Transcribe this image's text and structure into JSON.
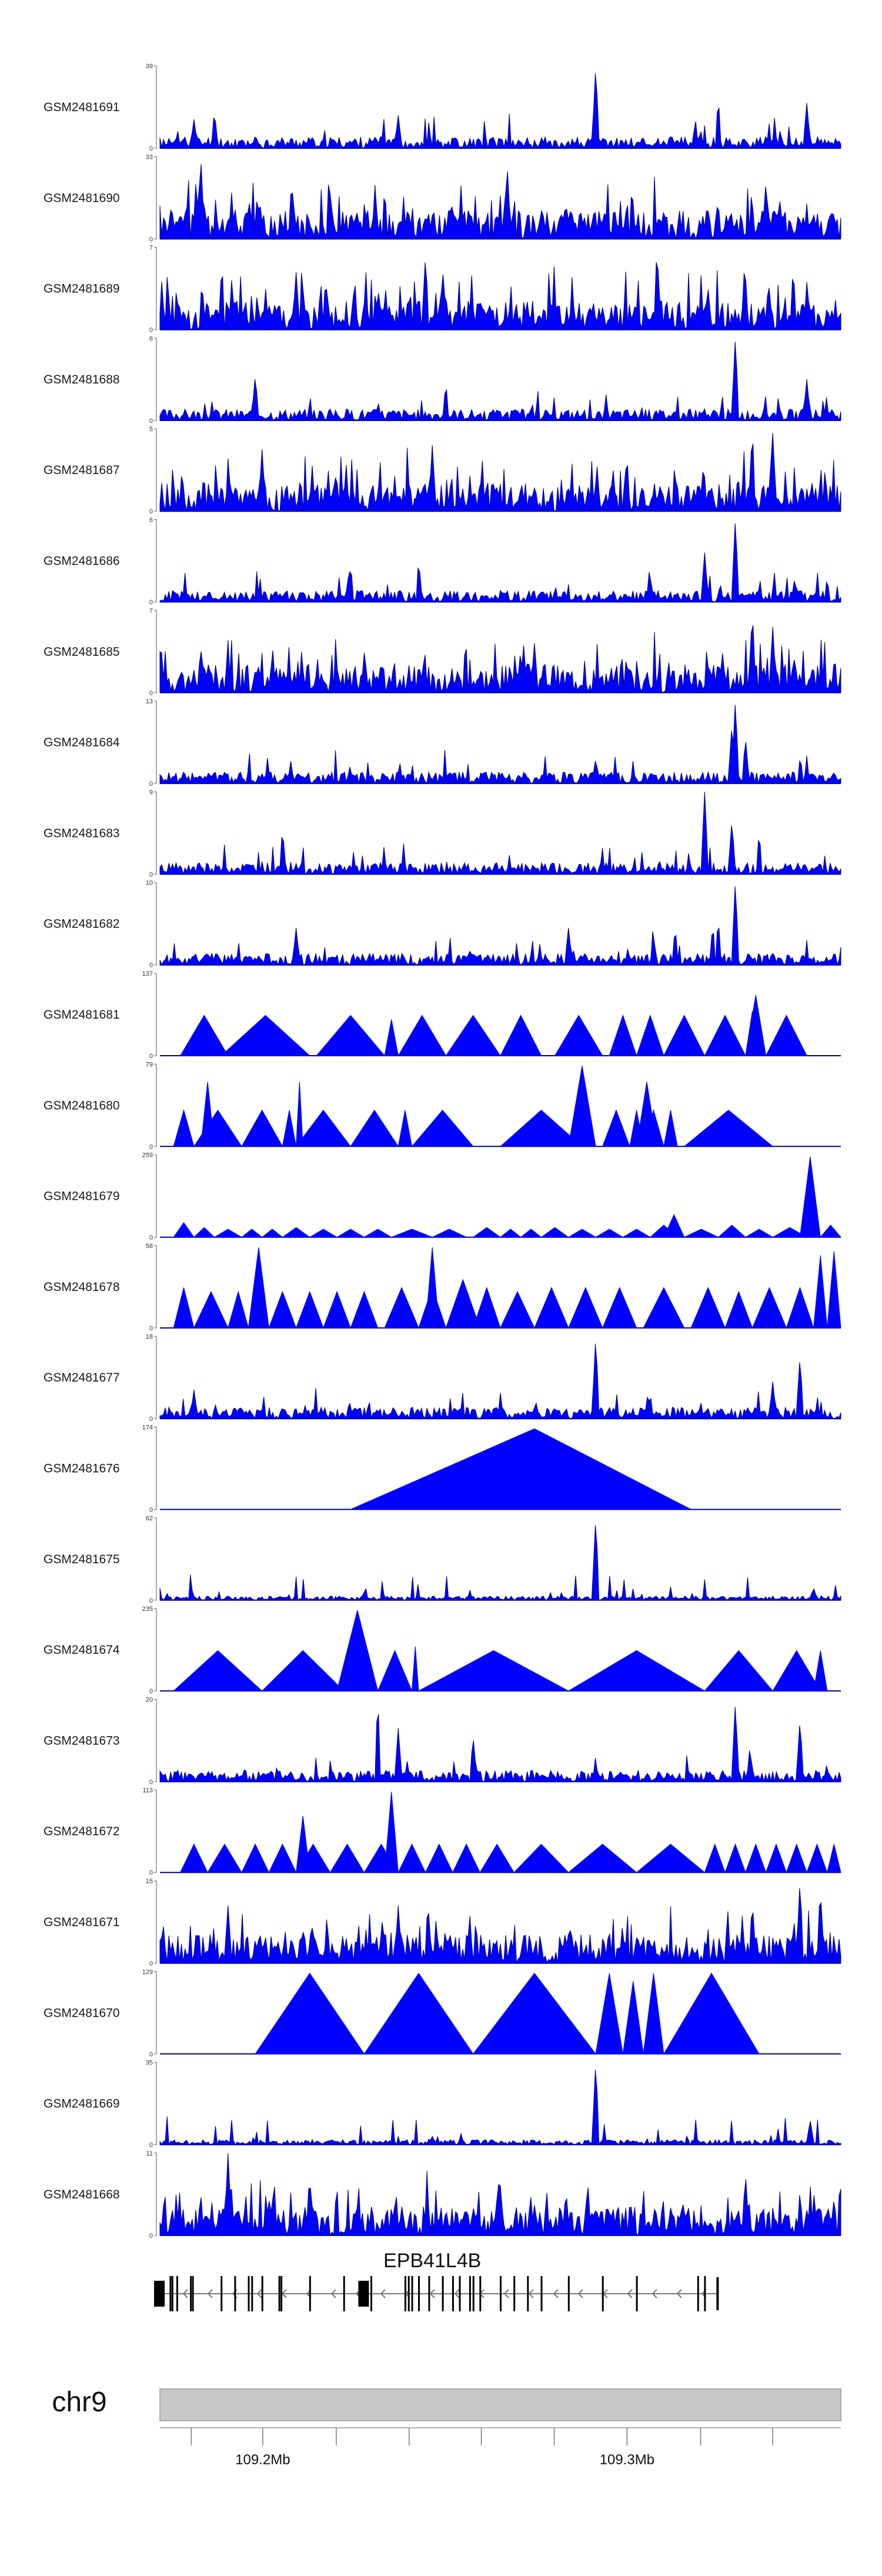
{
  "chart_data": {
    "type": "area",
    "description_title": "",
    "x_unit": "Mb",
    "xlim": [
      109.17,
      109.36
    ],
    "chromosome": "chr9",
    "tracks": [
      {
        "name": "GSM2481691",
        "ymax": 39,
        "style": "spiky",
        "seed": 11,
        "peaks": [
          [
            0.64,
            1.0
          ],
          [
            0.95,
            0.55
          ],
          [
            0.82,
            0.6
          ],
          [
            0.35,
            0.4
          ],
          [
            0.05,
            0.35
          ],
          [
            0.08,
            0.45
          ]
        ]
      },
      {
        "name": "GSM2481690",
        "ymax": 33,
        "style": "dense",
        "seed": 12,
        "peaks": [
          [
            0.51,
            0.9
          ],
          [
            0.89,
            0.7
          ],
          [
            0.06,
            1.0
          ],
          [
            0.25,
            0.55
          ],
          [
            0.33,
            0.6
          ]
        ]
      },
      {
        "name": "GSM2481689",
        "ymax": 7,
        "style": "dense",
        "seed": 13,
        "peaks": [
          [
            0.39,
            0.9
          ],
          [
            0.73,
            1.0
          ],
          [
            0.2,
            0.7
          ],
          [
            0.93,
            0.75
          ]
        ]
      },
      {
        "name": "GSM2481688",
        "ymax": 6,
        "style": "spiky",
        "seed": 14,
        "peaks": [
          [
            0.845,
            1.0
          ],
          [
            0.95,
            0.5
          ],
          [
            0.14,
            0.55
          ],
          [
            0.42,
            0.45
          ]
        ]
      },
      {
        "name": "GSM2481687",
        "ymax": 5,
        "style": "dense",
        "seed": 15,
        "peaks": [
          [
            0.87,
            1.0
          ],
          [
            0.9,
            0.95
          ],
          [
            0.4,
            0.8
          ],
          [
            0.15,
            0.75
          ]
        ]
      },
      {
        "name": "GSM2481686",
        "ymax": 6,
        "style": "spiky",
        "seed": 16,
        "peaks": [
          [
            0.845,
            1.0
          ],
          [
            0.8,
            0.6
          ],
          [
            0.38,
            0.5
          ],
          [
            0.28,
            0.45
          ]
        ]
      },
      {
        "name": "GSM2481685",
        "ymax": 7,
        "style": "dense",
        "seed": 17,
        "peaks": [
          [
            0.87,
            1.0
          ],
          [
            0.9,
            0.8
          ],
          [
            0.55,
            0.6
          ],
          [
            0.06,
            0.55
          ]
        ]
      },
      {
        "name": "GSM2481684",
        "ymax": 13,
        "style": "spiky",
        "seed": 18,
        "peaks": [
          [
            0.845,
            1.0
          ],
          [
            0.84,
            0.7
          ],
          [
            0.64,
            0.3
          ],
          [
            0.86,
            0.55
          ]
        ]
      },
      {
        "name": "GSM2481683",
        "ymax": 9,
        "style": "spiky",
        "seed": 19,
        "peaks": [
          [
            0.8,
            1.0
          ],
          [
            0.84,
            0.65
          ],
          [
            0.18,
            0.55
          ],
          [
            0.88,
            0.5
          ]
        ]
      },
      {
        "name": "GSM2481682",
        "ymax": 10,
        "style": "spiky",
        "seed": 20,
        "peaks": [
          [
            0.845,
            1.0
          ],
          [
            0.82,
            0.55
          ],
          [
            0.6,
            0.45
          ],
          [
            0.2,
            0.45
          ]
        ]
      },
      {
        "name": "GSM2481681",
        "ymax": 137,
        "style": "tri",
        "tri": [
          [
            0.03,
            0.1,
            0.5
          ],
          [
            0.09,
            0.22,
            0.5
          ],
          [
            0.23,
            0.33,
            0.5
          ],
          [
            0.33,
            0.35,
            0.45
          ],
          [
            0.35,
            0.42,
            0.5
          ],
          [
            0.42,
            0.5,
            0.5
          ],
          [
            0.5,
            0.56,
            0.5
          ],
          [
            0.58,
            0.65,
            0.5
          ],
          [
            0.66,
            0.7,
            0.5
          ],
          [
            0.7,
            0.74,
            0.5
          ],
          [
            0.74,
            0.8,
            0.5
          ],
          [
            0.8,
            0.86,
            0.5
          ],
          [
            0.86,
            0.89,
            0.75
          ],
          [
            0.89,
            0.95,
            0.5
          ],
          [
            0.86,
            0.88,
            0.55
          ]
        ]
      },
      {
        "name": "GSM2481680",
        "ymax": 79,
        "style": "tri",
        "tri": [
          [
            0.02,
            0.05,
            0.45
          ],
          [
            0.05,
            0.12,
            0.45
          ],
          [
            0.06,
            0.08,
            0.8
          ],
          [
            0.12,
            0.18,
            0.45
          ],
          [
            0.18,
            0.2,
            0.45
          ],
          [
            0.2,
            0.28,
            0.45
          ],
          [
            0.2,
            0.21,
            0.8
          ],
          [
            0.28,
            0.35,
            0.45
          ],
          [
            0.35,
            0.37,
            0.45
          ],
          [
            0.37,
            0.46,
            0.45
          ],
          [
            0.5,
            0.62,
            0.45
          ],
          [
            0.6,
            0.64,
            1.0
          ],
          [
            0.65,
            0.69,
            0.45
          ],
          [
            0.69,
            0.71,
            0.45
          ],
          [
            0.71,
            0.74,
            0.45
          ],
          [
            0.74,
            0.76,
            0.45
          ],
          [
            0.77,
            0.9,
            0.45
          ],
          [
            0.7,
            0.73,
            0.8
          ]
        ]
      },
      {
        "name": "GSM2481679",
        "ymax": 259,
        "style": "tri",
        "tri": [
          [
            0.02,
            0.05,
            0.18
          ],
          [
            0.05,
            0.08,
            0.12
          ],
          [
            0.08,
            0.12,
            0.1
          ],
          [
            0.12,
            0.15,
            0.1
          ],
          [
            0.15,
            0.18,
            0.1
          ],
          [
            0.18,
            0.22,
            0.12
          ],
          [
            0.22,
            0.26,
            0.1
          ],
          [
            0.26,
            0.3,
            0.1
          ],
          [
            0.3,
            0.34,
            0.1
          ],
          [
            0.34,
            0.4,
            0.1
          ],
          [
            0.4,
            0.45,
            0.1
          ],
          [
            0.46,
            0.5,
            0.12
          ],
          [
            0.5,
            0.53,
            0.1
          ],
          [
            0.53,
            0.56,
            0.1
          ],
          [
            0.56,
            0.6,
            0.12
          ],
          [
            0.6,
            0.64,
            0.1
          ],
          [
            0.64,
            0.68,
            0.1
          ],
          [
            0.68,
            0.72,
            0.1
          ],
          [
            0.72,
            0.76,
            0.15
          ],
          [
            0.74,
            0.77,
            0.28
          ],
          [
            0.77,
            0.82,
            0.1
          ],
          [
            0.82,
            0.86,
            0.15
          ],
          [
            0.86,
            0.9,
            0.1
          ],
          [
            0.9,
            0.95,
            0.12
          ],
          [
            0.94,
            0.97,
            1.0
          ],
          [
            0.97,
            1.0,
            0.15
          ]
        ]
      },
      {
        "name": "GSM2481678",
        "ymax": 58,
        "style": "tri",
        "tri": [
          [
            0.02,
            0.05,
            0.5
          ],
          [
            0.05,
            0.1,
            0.45
          ],
          [
            0.1,
            0.13,
            0.45
          ],
          [
            0.13,
            0.16,
            1.0
          ],
          [
            0.16,
            0.2,
            0.45
          ],
          [
            0.2,
            0.24,
            0.45
          ],
          [
            0.24,
            0.28,
            0.45
          ],
          [
            0.28,
            0.32,
            0.45
          ],
          [
            0.33,
            0.38,
            0.5
          ],
          [
            0.38,
            0.42,
            0.5
          ],
          [
            0.39,
            0.41,
            1.0
          ],
          [
            0.42,
            0.47,
            0.6
          ],
          [
            0.46,
            0.5,
            0.5
          ],
          [
            0.5,
            0.55,
            0.45
          ],
          [
            0.55,
            0.6,
            0.5
          ],
          [
            0.6,
            0.65,
            0.5
          ],
          [
            0.65,
            0.7,
            0.5
          ],
          [
            0.71,
            0.77,
            0.5
          ],
          [
            0.78,
            0.83,
            0.5
          ],
          [
            0.83,
            0.87,
            0.45
          ],
          [
            0.87,
            0.92,
            0.5
          ],
          [
            0.92,
            0.96,
            0.5
          ],
          [
            0.96,
            0.98,
            0.9
          ],
          [
            0.98,
            1.0,
            0.95
          ]
        ]
      },
      {
        "name": "GSM2481677",
        "ymax": 18,
        "style": "spiky",
        "seed": 21,
        "peaks": [
          [
            0.64,
            1.0
          ],
          [
            0.94,
            0.75
          ],
          [
            0.9,
            0.45
          ],
          [
            0.05,
            0.35
          ],
          [
            0.72,
            0.3
          ]
        ]
      },
      {
        "name": "GSM2481676",
        "ymax": 174,
        "style": "tri",
        "tri": [
          [
            0.28,
            0.78,
            1.0
          ]
        ],
        "apex": [
          0.55
        ]
      },
      {
        "name": "GSM2481675",
        "ymax": 62,
        "style": "spiky",
        "seed": 22,
        "peaks": [
          [
            0.64,
            1.0
          ],
          [
            0.96,
            0.15
          ],
          [
            0.3,
            0.1
          ]
        ],
        "baseScale": 0.05
      },
      {
        "name": "GSM2481674",
        "ymax": 235,
        "style": "tri",
        "tri": [
          [
            0.02,
            0.15,
            0.5
          ],
          [
            0.15,
            0.27,
            0.5
          ],
          [
            0.26,
            0.32,
            1.0
          ],
          [
            0.32,
            0.37,
            0.5
          ],
          [
            0.37,
            0.38,
            0.55
          ],
          [
            0.38,
            0.6,
            0.5
          ],
          [
            0.6,
            0.8,
            0.5
          ],
          [
            0.8,
            0.9,
            0.5
          ],
          [
            0.9,
            0.97,
            0.5
          ],
          [
            0.96,
            0.98,
            0.5
          ]
        ]
      },
      {
        "name": "GSM2481673",
        "ymax": 20,
        "style": "spiky",
        "seed": 23,
        "peaks": [
          [
            0.32,
            1.0
          ],
          [
            0.845,
            0.95
          ],
          [
            0.94,
            0.75
          ],
          [
            0.35,
            0.65
          ],
          [
            0.46,
            0.55
          ]
        ]
      },
      {
        "name": "GSM2481672",
        "ymax": 113,
        "style": "tri",
        "tri": [
          [
            0.03,
            0.07,
            0.35
          ],
          [
            0.07,
            0.12,
            0.35
          ],
          [
            0.12,
            0.16,
            0.35
          ],
          [
            0.16,
            0.2,
            0.35
          ],
          [
            0.2,
            0.25,
            0.35
          ],
          [
            0.25,
            0.3,
            0.35
          ],
          [
            0.3,
            0.35,
            0.35
          ],
          [
            0.33,
            0.35,
            1.0
          ],
          [
            0.35,
            0.39,
            0.35
          ],
          [
            0.39,
            0.43,
            0.35
          ],
          [
            0.43,
            0.47,
            0.35
          ],
          [
            0.47,
            0.52,
            0.35
          ],
          [
            0.52,
            0.6,
            0.35
          ],
          [
            0.6,
            0.7,
            0.35
          ],
          [
            0.7,
            0.8,
            0.35
          ],
          [
            0.8,
            0.83,
            0.35
          ],
          [
            0.83,
            0.86,
            0.35
          ],
          [
            0.86,
            0.89,
            0.35
          ],
          [
            0.89,
            0.92,
            0.35
          ],
          [
            0.92,
            0.95,
            0.35
          ],
          [
            0.95,
            0.98,
            0.35
          ],
          [
            0.98,
            1.0,
            0.35
          ],
          [
            0.2,
            0.22,
            0.7
          ]
        ]
      },
      {
        "name": "GSM2481671",
        "ymax": 15,
        "style": "dense",
        "seed": 24,
        "peaks": [
          [
            0.94,
            1.0
          ],
          [
            0.87,
            0.75
          ],
          [
            0.35,
            0.7
          ],
          [
            0.1,
            0.7
          ]
        ],
        "triMix": true
      },
      {
        "name": "GSM2481670",
        "ymax": 129,
        "style": "tri",
        "tri": [
          [
            0.14,
            0.3,
            1.0
          ],
          [
            0.3,
            0.46,
            1.0
          ],
          [
            0.46,
            0.64,
            1.0
          ],
          [
            0.64,
            0.68,
            1.0
          ],
          [
            0.68,
            0.71,
            0.9
          ],
          [
            0.71,
            0.74,
            1.0
          ],
          [
            0.74,
            0.88,
            1.0
          ]
        ]
      },
      {
        "name": "GSM2481669",
        "ymax": 35,
        "style": "spiky",
        "seed": 25,
        "peaks": [
          [
            0.64,
            1.0
          ],
          [
            0.955,
            0.3
          ],
          [
            0.4,
            0.1
          ]
        ],
        "baseScale": 0.06
      },
      {
        "name": "GSM2481668",
        "ymax": 11,
        "style": "dense",
        "seed": 26,
        "peaks": [
          [
            0.1,
            1.0
          ],
          [
            0.86,
            0.75
          ],
          [
            0.5,
            0.6
          ],
          [
            0.99,
            0.45
          ]
        ]
      }
    ],
    "gene": {
      "name": "EPB41L4B",
      "strand": "-",
      "start": 0.0,
      "end": 0.8,
      "exons": [
        0.0,
        0.015,
        0.018,
        0.025,
        0.045,
        0.048,
        0.09,
        0.11,
        0.13,
        0.135,
        0.15,
        0.175,
        0.178,
        0.22,
        0.27,
        0.3,
        0.31,
        0.36,
        0.365,
        0.37,
        0.38,
        0.395,
        0.415,
        0.43,
        0.44,
        0.455,
        0.46,
        0.47,
        0.5,
        0.52,
        0.54,
        0.56,
        0.6,
        0.65,
        0.7,
        0.79,
        0.8
      ]
    },
    "axis": {
      "ticks": [
        {
          "pos": 0.046,
          "label": ""
        },
        {
          "pos": 0.151,
          "label": "109.2Mb"
        },
        {
          "pos": 0.259,
          "label": ""
        },
        {
          "pos": 0.366,
          "label": ""
        },
        {
          "pos": 0.472,
          "label": ""
        },
        {
          "pos": 0.579,
          "label": ""
        },
        {
          "pos": 0.686,
          "label": "109.3Mb"
        },
        {
          "pos": 0.794,
          "label": ""
        },
        {
          "pos": 0.9,
          "label": ""
        }
      ]
    }
  },
  "colors": {
    "fill": "#0000ff",
    "line": "#00008b",
    "axis": "#555555",
    "ideogram": "#c8c8c8"
  }
}
